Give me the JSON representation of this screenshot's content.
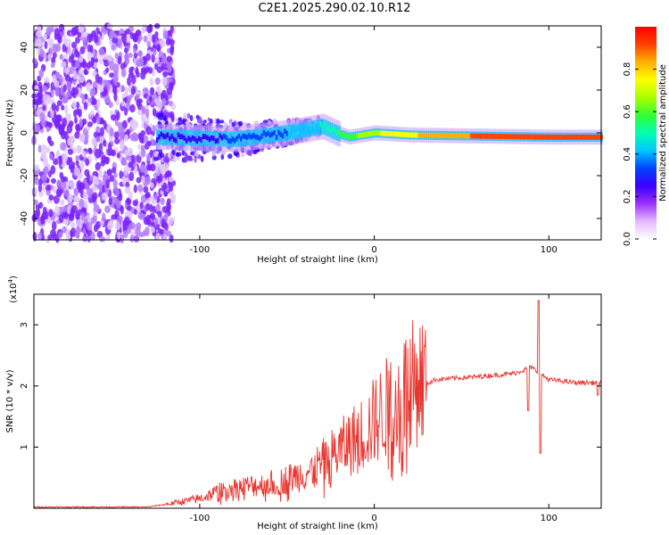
{
  "title": "C2E1.2025.290.02.10.R12",
  "colors": {
    "line": "#e8352e",
    "axis": "#000000",
    "cbar": [
      "#ffffff",
      "#e6b8ff",
      "#9b30ff",
      "#3a00ff",
      "#0044ff",
      "#00c8ff",
      "#00ffb0",
      "#33ff33",
      "#aaff00",
      "#ffff00",
      "#ffb000",
      "#ff4000",
      "#ff0000"
    ]
  },
  "chart_data": [
    {
      "type": "heatmap",
      "name": "spectrogram",
      "xlabel": "Height of straight line (km)",
      "ylabel": "Frequency (Hz)",
      "xlim": [
        -195,
        130
      ],
      "ylim": [
        -50,
        50
      ],
      "xticks": [
        -100,
        0,
        100
      ],
      "xtick_labels": [
        "-100",
        "0",
        "100"
      ],
      "yticks": [
        -40,
        -20,
        0,
        20,
        40
      ],
      "ytick_labels": [
        "-40",
        "-20",
        "0",
        "20",
        "40"
      ],
      "colorbar": {
        "label": "Normalized spectral amplitude",
        "range": [
          0,
          1
        ],
        "ticks": [
          0.0,
          0.2,
          0.4,
          0.6,
          0.8
        ],
        "tick_labels": [
          "0.0",
          "0.2",
          "0.4",
          "0.6",
          "0.8"
        ]
      },
      "ridge": {
        "description_points_km_hz": [
          [
            -120,
            -2
          ],
          [
            -80,
            -3
          ],
          [
            -50,
            0
          ],
          [
            -30,
            3
          ],
          [
            -22,
            0
          ],
          [
            -15,
            -2
          ],
          [
            0,
            0
          ],
          [
            20,
            -1
          ],
          [
            100,
            -2
          ],
          [
            130,
            -2
          ]
        ],
        "amplitude_points": [
          [
            -120,
            0.25
          ],
          [
            -80,
            0.3
          ],
          [
            -40,
            0.4
          ],
          [
            -20,
            0.55
          ],
          [
            0,
            0.7
          ],
          [
            40,
            0.85
          ],
          [
            100,
            0.95
          ],
          [
            130,
            0.9
          ]
        ]
      }
    },
    {
      "type": "line",
      "name": "snr",
      "xlabel": "Height of straight line (km)",
      "ylabel": "SNR (10 * v/v)",
      "multiplier_label": "(x10",
      "multiplier_exp": "4",
      "multiplier_close": ")",
      "xlim": [
        -195,
        130
      ],
      "ylim": [
        0,
        3.5
      ],
      "xticks": [
        -100,
        0,
        100
      ],
      "xtick_labels": [
        "-100",
        "0",
        "100"
      ],
      "yticks": [
        1,
        2,
        3
      ],
      "ytick_labels": [
        "1",
        "2",
        "3"
      ],
      "envelope_km_vs_snr": [
        [
          -195,
          0.02
        ],
        [
          -130,
          0.02
        ],
        [
          -115,
          0.08
        ],
        [
          -100,
          0.15
        ],
        [
          -85,
          0.3
        ],
        [
          -70,
          0.35
        ],
        [
          -55,
          0.4
        ],
        [
          -45,
          0.5
        ],
        [
          -35,
          0.6
        ],
        [
          -25,
          0.8
        ],
        [
          -15,
          1.0
        ],
        [
          -5,
          1.2
        ],
        [
          5,
          1.5
        ],
        [
          20,
          1.9
        ],
        [
          35,
          2.1
        ],
        [
          60,
          2.15
        ],
        [
          80,
          2.2
        ],
        [
          90,
          2.3
        ],
        [
          95,
          2.2
        ],
        [
          100,
          2.1
        ],
        [
          115,
          2.05
        ],
        [
          130,
          2.05
        ]
      ],
      "spike": {
        "x": 94,
        "peak": 3.4,
        "dip": 0.9
      }
    }
  ]
}
